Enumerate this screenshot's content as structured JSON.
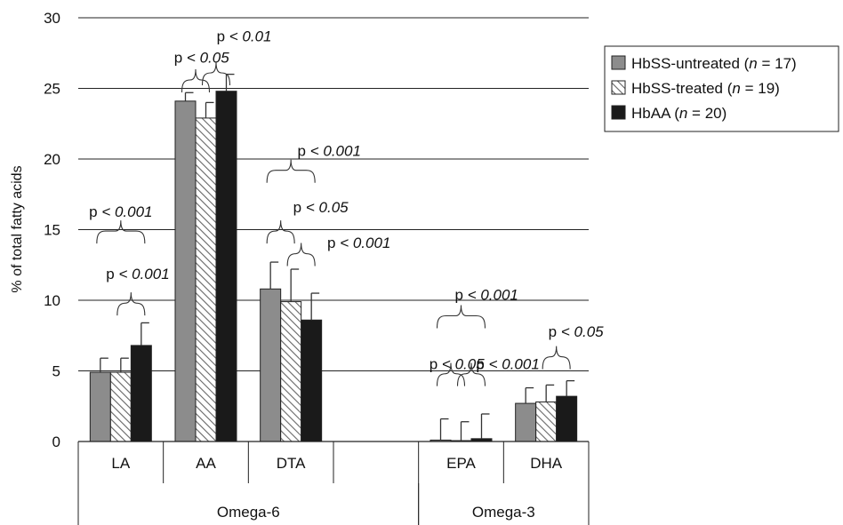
{
  "chart_data": {
    "type": "bar",
    "title": "",
    "ylabel": "% of total fatty acids",
    "xlabel": "",
    "ylim": [
      0,
      30
    ],
    "yticks": [
      0,
      5,
      10,
      15,
      20,
      25,
      30
    ],
    "grid": true,
    "legend_position": "top-right",
    "categories": [
      "LA",
      "AA",
      "DTA",
      "",
      "EPA",
      "DHA"
    ],
    "groups": [
      {
        "label": "Omega-6",
        "from": 0,
        "to": 3
      },
      {
        "label": "Omega-3",
        "from": 4,
        "to": 5
      }
    ],
    "series": [
      {
        "name_parts": [
          "HbSS-untreated (",
          "n",
          " = 17)"
        ],
        "style": "solid",
        "color": "#8c8c8c",
        "values": [
          4.9,
          24.1,
          10.8,
          null,
          0.1,
          2.7
        ],
        "errors": [
          1.0,
          0.6,
          1.9,
          null,
          1.5,
          1.1
        ]
      },
      {
        "name_parts": [
          "HbSS-treated (",
          "n",
          " = 19)"
        ],
        "style": "hatched",
        "color": "#ffffff",
        "values": [
          4.9,
          22.9,
          9.9,
          null,
          0.05,
          2.8
        ],
        "errors": [
          1.0,
          1.1,
          2.3,
          null,
          1.35,
          1.2
        ]
      },
      {
        "name_parts": [
          "HbAA (",
          "n",
          " = 20)"
        ],
        "style": "solid",
        "color": "#1a1a1a",
        "values": [
          6.8,
          24.8,
          8.6,
          null,
          0.2,
          3.2
        ],
        "errors": [
          1.6,
          1.2,
          1.9,
          null,
          1.75,
          1.1
        ]
      }
    ],
    "annotations": [
      {
        "parts": [
          "p",
          " < 0.001"
        ],
        "from": [
          0,
          0
        ],
        "to": [
          0,
          2
        ],
        "brace_y": 14.9,
        "label_x": 0.0,
        "label_y": 16.3
      },
      {
        "parts": [
          "p",
          " < 0.001"
        ],
        "from": [
          0,
          1
        ],
        "to": [
          0,
          2
        ],
        "brace_y": 9.8,
        "label_x": 0.2,
        "label_y": 11.9
      },
      {
        "parts": [
          "p",
          " < 0.05"
        ],
        "from": [
          1,
          0
        ],
        "to": [
          1,
          1
        ],
        "brace_y": 25.6,
        "label_x": 0.95,
        "label_y": 27.2
      },
      {
        "parts": [
          "p",
          " < 0.01"
        ],
        "from": [
          1,
          1
        ],
        "to": [
          1,
          2
        ],
        "brace_y": 26.1,
        "label_x": 1.45,
        "label_y": 28.7
      },
      {
        "parts": [
          "p",
          " < 0.001"
        ],
        "from": [
          2,
          0
        ],
        "to": [
          2,
          2
        ],
        "brace_y": 19.2,
        "label_x": 2.45,
        "label_y": 20.6
      },
      {
        "parts": [
          "p",
          " < 0.05"
        ],
        "from": [
          2,
          0
        ],
        "to": [
          2,
          1
        ],
        "brace_y": 14.9,
        "label_x": 2.35,
        "label_y": 16.6
      },
      {
        "parts": [
          "p",
          " < 0.001"
        ],
        "from": [
          2,
          1
        ],
        "to": [
          2,
          2
        ],
        "brace_y": 13.3,
        "label_x": 2.8,
        "label_y": 14.1
      },
      {
        "parts": [
          "p",
          " < 0.001"
        ],
        "from": [
          4,
          0
        ],
        "to": [
          4,
          2
        ],
        "brace_y": 8.9,
        "label_x": 4.3,
        "label_y": 10.4
      },
      {
        "parts": [
          "p",
          " < 0.05"
        ],
        "from": [
          4,
          0
        ],
        "to": [
          4,
          1
        ],
        "brace_y": 4.8,
        "label_x": 3.95,
        "label_y": 5.5
      },
      {
        "parts": [
          "p",
          " < 0.001"
        ],
        "from": [
          4,
          1
        ],
        "to": [
          4,
          2
        ],
        "brace_y": 4.8,
        "label_x": 4.55,
        "label_y": 5.5
      },
      {
        "parts": [
          "p",
          " < 0.05"
        ],
        "from": [
          5,
          1
        ],
        "to": [
          5,
          2
        ],
        "brace_y": 6.0,
        "label_x": 5.35,
        "label_y": 7.8
      }
    ]
  }
}
